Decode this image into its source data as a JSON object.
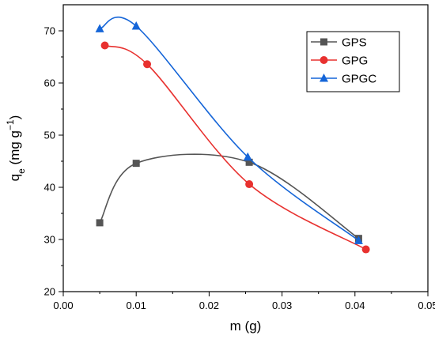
{
  "chart_data": {
    "type": "line",
    "xlabel": "m (g)",
    "ylabel": "q",
    "ylabel_sub": "e",
    "ylabel_unit": " (mg g",
    "ylabel_sup": "−1",
    "ylabel_close": ")",
    "xlim": [
      0.0,
      0.05
    ],
    "ylim": [
      20,
      75
    ],
    "xticks": [
      0.0,
      0.01,
      0.02,
      0.03,
      0.04,
      0.05
    ],
    "xtick_labels": [
      "0.00",
      "0.01",
      "0.02",
      "0.03",
      "0.04",
      "0.05"
    ],
    "yticks": [
      20,
      30,
      40,
      50,
      60,
      70
    ],
    "ytick_labels": [
      "20",
      "30",
      "40",
      "50",
      "60",
      "70"
    ],
    "grid": false,
    "legend_position": "top-right",
    "series": [
      {
        "name": "GPS",
        "color": "#555555",
        "marker": "square",
        "x": [
          0.005,
          0.01,
          0.0255,
          0.0405
        ],
        "y": [
          33.2,
          44.6,
          44.8,
          30.2
        ]
      },
      {
        "name": "GPG",
        "color": "#e8312f",
        "marker": "circle",
        "x": [
          0.0057,
          0.0115,
          0.0255,
          0.0415
        ],
        "y": [
          67.2,
          63.6,
          40.6,
          28.1
        ]
      },
      {
        "name": "GPGC",
        "color": "#1565d8",
        "marker": "triangle",
        "x": [
          0.005,
          0.01,
          0.0253,
          0.0405
        ],
        "y": [
          70.4,
          70.9,
          45.8,
          29.8
        ]
      }
    ]
  }
}
